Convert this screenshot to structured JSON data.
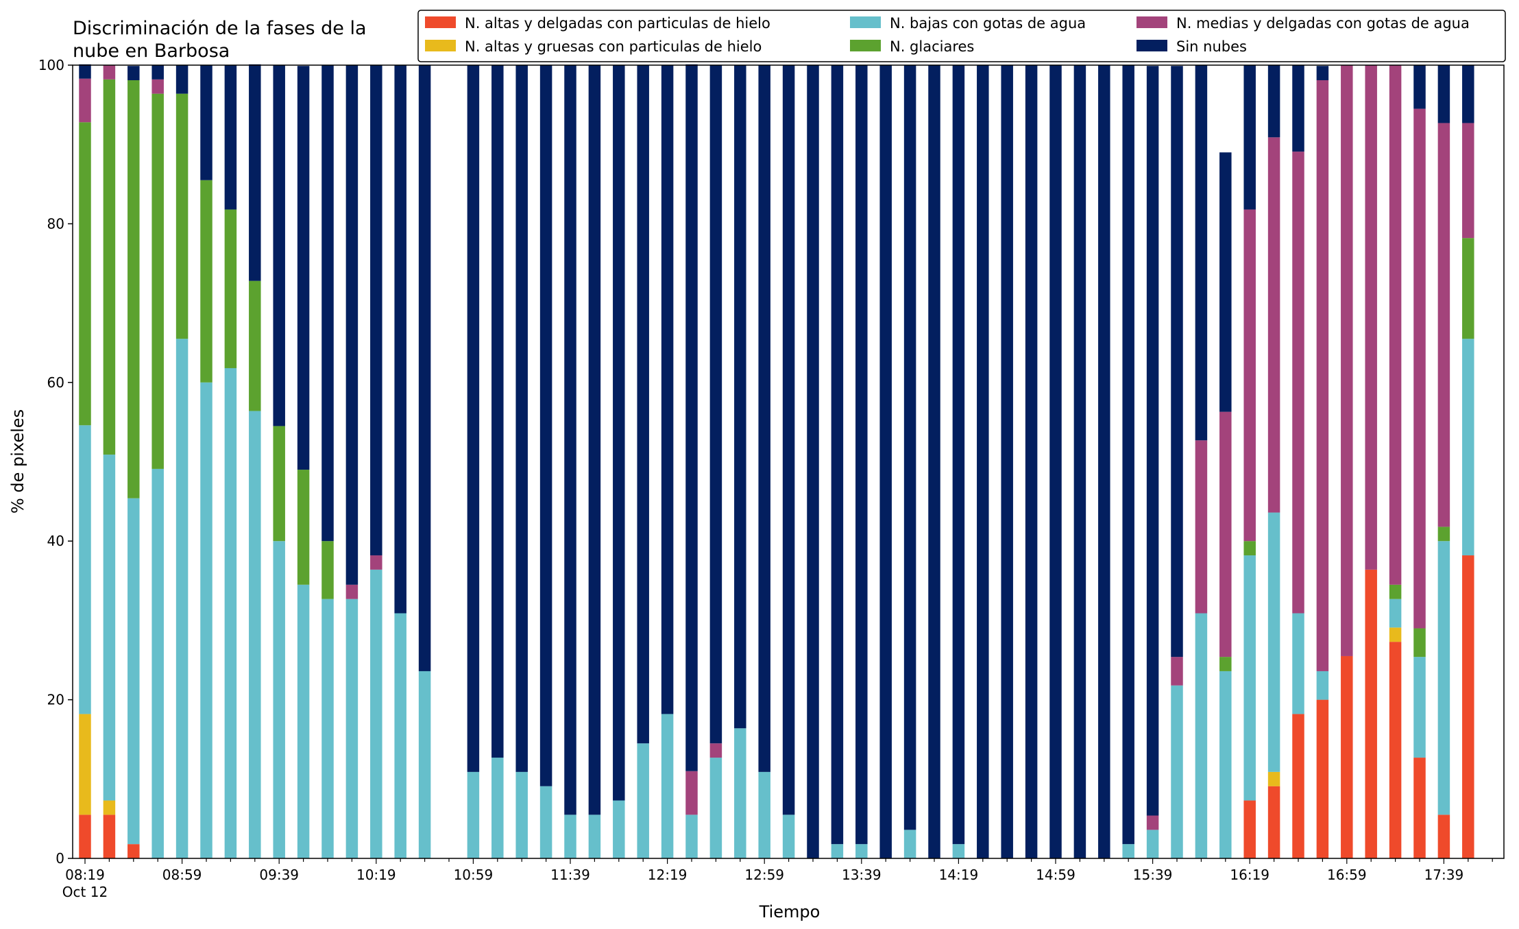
{
  "chart_data": {
    "type": "bar",
    "stacked": true,
    "title_lines": [
      "Discriminación de la fases de la",
      "nube en Barbosa"
    ],
    "xlabel": "Tiempo",
    "ylabel": "% de pixeles",
    "ylim": [
      0,
      100
    ],
    "yticks": [
      "0",
      "20",
      "40",
      "60",
      "80",
      "100"
    ],
    "xtick_labels": [
      "08:19",
      "08:59",
      "09:39",
      "10:19",
      "10:59",
      "11:39",
      "12:19",
      "12:59",
      "13:39",
      "14:19",
      "14:59",
      "15:39",
      "16:19",
      "16:59",
      "17:39"
    ],
    "xtick_sublabel": "Oct 12",
    "grid": false,
    "legend_position": "top-right",
    "categories": [
      "08:19",
      "08:29",
      "08:39",
      "08:49",
      "08:59",
      "09:09",
      "09:19",
      "09:29",
      "09:39",
      "09:49",
      "09:59",
      "10:09",
      "10:19",
      "10:29",
      "10:39",
      "10:49",
      "10:59",
      "11:09",
      "11:19",
      "11:29",
      "11:39",
      "11:49",
      "11:59",
      "12:09",
      "12:19",
      "12:29",
      "12:39",
      "12:49",
      "12:59",
      "13:09",
      "13:19",
      "13:29",
      "13:39",
      "13:49",
      "13:59",
      "14:09",
      "14:19",
      "14:29",
      "14:39",
      "14:49",
      "14:59",
      "15:09",
      "15:19",
      "15:29",
      "15:39",
      "15:49",
      "15:59",
      "16:09",
      "16:19",
      "16:29",
      "16:39",
      "16:49",
      "16:59",
      "17:09",
      "17:19",
      "17:29",
      "17:39",
      "17:49"
    ],
    "series": [
      {
        "name": "N. altas y delgadas con particulas de hielo",
        "color": "#ef4a2b",
        "values": [
          5.5,
          5.5,
          1.8,
          0,
          0,
          0,
          0,
          0,
          0,
          0,
          0,
          0,
          0,
          0,
          0,
          0,
          0,
          0,
          0,
          0,
          0,
          0,
          0,
          0,
          0,
          0,
          0,
          0,
          0,
          0,
          0,
          0,
          0,
          0,
          0,
          0,
          0,
          0,
          0,
          0,
          0,
          0,
          0,
          0,
          0,
          0,
          0,
          0,
          7.3,
          9.1,
          18.2,
          20,
          25.5,
          36.4,
          27.3,
          12.7,
          5.5,
          38.2
        ]
      },
      {
        "name": "N. altas y gruesas con particulas de hielo",
        "color": "#e8ba1c",
        "values": [
          12.7,
          1.8,
          0,
          0,
          0,
          0,
          0,
          0,
          0,
          0,
          0,
          0,
          0,
          0,
          0,
          0,
          0,
          0,
          0,
          0,
          0,
          0,
          0,
          0,
          0,
          0,
          0,
          0,
          0,
          0,
          0,
          0,
          0,
          0,
          0,
          0,
          0,
          0,
          0,
          0,
          0,
          0,
          0,
          0,
          0,
          0,
          0,
          0,
          0,
          1.8,
          0,
          0,
          0,
          0,
          1.8,
          0,
          0,
          0
        ]
      },
      {
        "name": "N. bajas con gotas de agua",
        "color": "#66bfcb",
        "values": [
          36.4,
          43.6,
          43.6,
          49.1,
          65.5,
          60,
          61.8,
          56.4,
          40,
          34.5,
          32.7,
          32.7,
          36.4,
          30.9,
          23.6,
          0,
          10.9,
          12.7,
          10.9,
          9.1,
          5.5,
          5.5,
          7.3,
          14.5,
          18.2,
          5.5,
          12.7,
          16.4,
          10.9,
          5.5,
          0,
          1.8,
          1.8,
          0,
          3.6,
          0,
          1.8,
          0,
          0,
          0,
          0,
          0,
          0,
          1.8,
          3.6,
          21.8,
          30.9,
          23.6,
          30.9,
          32.7,
          12.7,
          3.6,
          0,
          0,
          3.6,
          12.7,
          34.5,
          27.3
        ]
      },
      {
        "name": "N. glaciares",
        "color": "#5ca22f",
        "values": [
          38.2,
          47.3,
          52.7,
          47.3,
          30.9,
          25.5,
          20,
          16.4,
          14.5,
          14.5,
          7.3,
          0,
          0,
          0,
          0,
          0,
          0,
          0,
          0,
          0,
          0,
          0,
          0,
          0,
          0,
          0,
          0,
          0,
          0,
          0,
          0,
          0,
          0,
          0,
          0,
          0,
          0,
          0,
          0,
          0,
          0,
          0,
          0,
          0,
          0,
          0,
          0,
          1.8,
          1.8,
          0,
          0,
          0,
          0,
          0,
          1.8,
          3.6,
          1.8,
          12.7
        ]
      },
      {
        "name": "N. medias y delgadas con gotas de agua",
        "color": "#a3437b",
        "values": [
          5.5,
          1.8,
          0,
          1.8,
          0,
          0,
          0,
          0,
          0,
          0,
          0,
          1.8,
          1.8,
          0,
          0,
          0,
          0,
          0,
          0,
          0,
          0,
          0,
          0,
          0,
          0,
          5.5,
          1.8,
          0,
          0,
          0,
          0,
          0,
          0,
          0,
          0,
          0,
          0,
          0,
          0,
          0,
          0,
          0,
          0,
          0,
          1.8,
          3.6,
          21.8,
          30.9,
          41.8,
          47.3,
          58.2,
          74.5,
          74.5,
          63.6,
          65.5,
          65.5,
          50.9,
          14.5
        ]
      },
      {
        "name": "Sin nubes",
        "color": "#031f5f",
        "values": [
          1.8,
          0,
          1.8,
          1.8,
          3.6,
          14.5,
          18.2,
          27.3,
          45.5,
          50.9,
          60,
          65.5,
          61.8,
          69.1,
          76.4,
          0,
          89.1,
          87.3,
          89.1,
          90.9,
          94.5,
          94.5,
          92.7,
          85.5,
          81.8,
          89.1,
          85.5,
          83.6,
          89.1,
          94.5,
          100,
          98.2,
          98.2,
          100,
          96.4,
          100,
          98.2,
          100,
          100,
          100,
          100,
          100,
          100,
          98.2,
          94.5,
          74.5,
          47.3,
          32.7,
          18.2,
          9.1,
          10.9,
          1.8,
          0,
          0,
          0,
          5.5,
          7.3,
          7.3
        ]
      }
    ]
  }
}
